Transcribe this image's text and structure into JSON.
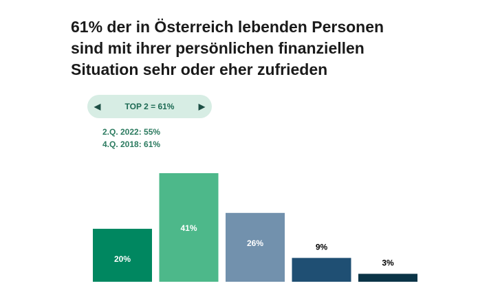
{
  "title": {
    "line1": "61% der in Österreich lebenden Personen",
    "line2": "sind mit ihrer persönlichen finanziellen",
    "line3": "Situation sehr oder eher  zufrieden"
  },
  "summary": {
    "label": "TOP 2 = 61%",
    "prev_icon": "left-triangle-icon",
    "next_icon": "right-triangle-icon",
    "prev_glyph": "◀",
    "next_glyph": "▶",
    "comparison_1": "2.Q. 2022: 55%",
    "comparison_2": "4.Q. 2018: 61%"
  },
  "chart_data": {
    "type": "bar",
    "title": "61% der in Österreich lebenden Personen sind mit ihrer persönlichen finanziellen Situation sehr oder eher  zufrieden",
    "xlabel": "",
    "ylabel": "",
    "categories": [
      "",
      "",
      "",
      "",
      ""
    ],
    "values": [
      20,
      41,
      26,
      9,
      3
    ],
    "labels": [
      "20%",
      "41%",
      "26%",
      "9%",
      "3%"
    ],
    "colors": [
      "#008760",
      "#4db88a",
      "#7291ad",
      "#1f4f73",
      "#0b3447"
    ],
    "label_colors": [
      "#ffffff",
      "#ffffff",
      "#ffffff",
      "#000000",
      "#000000"
    ],
    "ylim": [
      0,
      41
    ],
    "grid": false
  }
}
